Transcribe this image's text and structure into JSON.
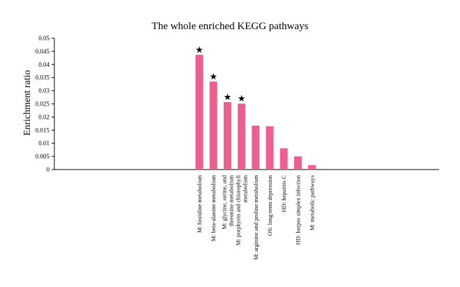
{
  "chart_data": {
    "type": "bar",
    "title": "The whole enriched KEGG pathways",
    "xlabel": "",
    "ylabel": "Enrichment ratio",
    "ylim": [
      0,
      0.05
    ],
    "yticks": [
      "0",
      "0.005",
      "0.01",
      "0.015",
      "0.02",
      "0.025",
      "0.03",
      "0.035",
      "0.04",
      "0.045",
      "0.05"
    ],
    "bar_color": "#EE5F8F",
    "marker_symbol": "★",
    "grid": false,
    "legend": "none",
    "categories": [
      [
        "M: histidine metabolism"
      ],
      [
        "M: beta-alanine metabolism"
      ],
      [
        "M: glycine, serine, and",
        "threonine metabolism"
      ],
      [
        "M: porphyrin and chlorophyll",
        "metabolism"
      ],
      [
        "M: arginine and proline metabolism"
      ],
      [
        "OS: long-term depression"
      ],
      [
        "HD: hepatitis C"
      ],
      [
        "HD: herpes simplex infection"
      ],
      [
        "M: metabolic pathways"
      ]
    ],
    "values": [
      0.0437,
      0.0335,
      0.0257,
      0.0251,
      0.0167,
      0.0165,
      0.0081,
      0.005,
      0.0017
    ],
    "starred": [
      true,
      true,
      true,
      true,
      false,
      false,
      false,
      false,
      false
    ]
  }
}
